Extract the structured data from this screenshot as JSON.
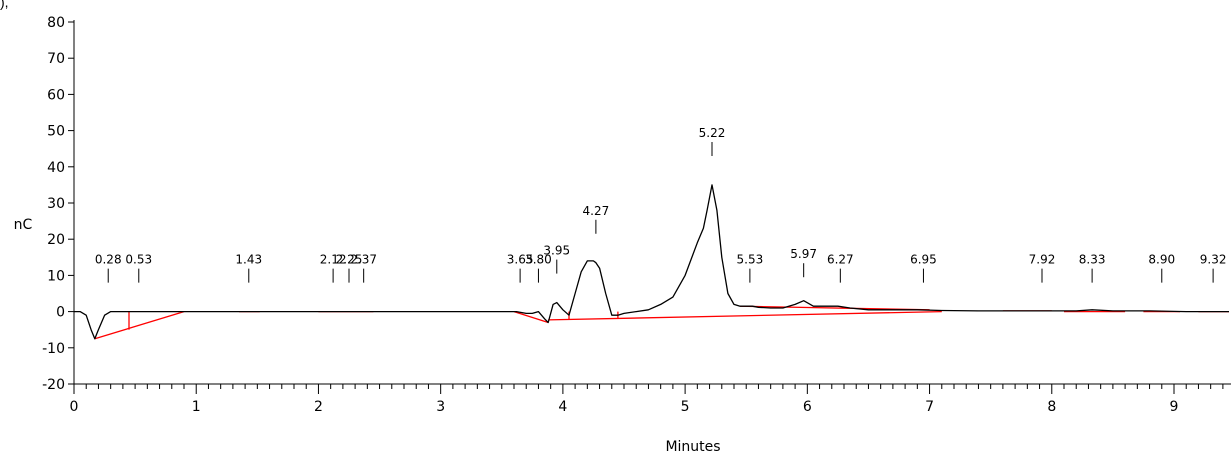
{
  "corner_label": "),",
  "chart_data": {
    "type": "line",
    "xlabel": "Minutes",
    "ylabel": "nC",
    "xlim": [
      0,
      9.45
    ],
    "ylim": [
      -20,
      80
    ],
    "x_ticks": [
      0,
      1,
      2,
      3,
      4,
      5,
      6,
      7,
      8,
      9
    ],
    "y_ticks": [
      -20,
      -10,
      0,
      10,
      20,
      30,
      40,
      50,
      60,
      70,
      80
    ],
    "grid": false,
    "colors": {
      "trace": "#000000",
      "baseline": "#ff0000",
      "axis": "#000000"
    },
    "peaks": [
      {
        "label": "0.28",
        "x": 0.28,
        "y": 8
      },
      {
        "label": "0.53",
        "x": 0.53,
        "y": 8
      },
      {
        "label": "1.43",
        "x": 1.43,
        "y": 8
      },
      {
        "label": "2.12",
        "x": 2.12,
        "y": 8
      },
      {
        "label": "2.25",
        "x": 2.25,
        "y": 8
      },
      {
        "label": "2.37",
        "x": 2.37,
        "y": 8
      },
      {
        "label": "3.65",
        "x": 3.65,
        "y": 8
      },
      {
        "label": "3.80",
        "x": 3.8,
        "y": 8
      },
      {
        "label": "3.95",
        "x": 3.95,
        "y": 10.5
      },
      {
        "label": "4.27",
        "x": 4.27,
        "y": 21.5
      },
      {
        "label": "5.22",
        "x": 5.22,
        "y": 43
      },
      {
        "label": "5.53",
        "x": 5.53,
        "y": 8
      },
      {
        "label": "5.97",
        "x": 5.97,
        "y": 9.5
      },
      {
        "label": "6.27",
        "x": 6.27,
        "y": 8
      },
      {
        "label": "6.95",
        "x": 6.95,
        "y": 8
      },
      {
        "label": "7.92",
        "x": 7.92,
        "y": 8
      },
      {
        "label": "8.33",
        "x": 8.33,
        "y": 8
      },
      {
        "label": "8.90",
        "x": 8.9,
        "y": 8
      },
      {
        "label": "9.32",
        "x": 9.32,
        "y": 8
      }
    ],
    "trace": {
      "x": [
        0,
        0.05,
        0.1,
        0.14,
        0.17,
        0.2,
        0.25,
        0.3,
        0.4,
        0.6,
        0.9,
        1.2,
        1.5,
        2.0,
        2.5,
        3.0,
        3.5,
        3.62,
        3.7,
        3.75,
        3.8,
        3.85,
        3.88,
        3.92,
        3.95,
        4.0,
        4.05,
        4.1,
        4.15,
        4.2,
        4.25,
        4.27,
        4.3,
        4.35,
        4.4,
        4.45,
        4.5,
        4.6,
        4.7,
        4.8,
        4.9,
        5.0,
        5.1,
        5.15,
        5.18,
        5.22,
        5.26,
        5.3,
        5.35,
        5.4,
        5.45,
        5.5,
        5.55,
        5.6,
        5.7,
        5.8,
        5.9,
        5.97,
        6.05,
        6.15,
        6.25,
        6.35,
        6.5,
        6.7,
        6.9,
        7.1,
        7.4,
        7.8,
        8.2,
        8.33,
        8.5,
        8.8,
        9.1,
        9.45
      ],
      "y": [
        0,
        0,
        -1,
        -5,
        -7.5,
        -5,
        -1,
        0,
        0,
        0,
        0,
        0,
        0,
        0,
        0,
        0,
        0,
        0,
        -0.5,
        -0.5,
        0,
        -2,
        -3,
        2,
        2.5,
        0.5,
        -1,
        5,
        11,
        14,
        14,
        13.5,
        12,
        5,
        -1,
        -1,
        -0.5,
        0,
        0.5,
        2,
        4,
        10,
        19,
        23,
        28,
        35,
        28,
        15,
        5,
        2,
        1.5,
        1.5,
        1.5,
        1.2,
        1,
        1,
        2,
        3,
        1.5,
        1.5,
        1.5,
        1,
        0.5,
        0.5,
        0.5,
        0.3,
        0.2,
        0.2,
        0.2,
        0.5,
        0.2,
        0.2,
        0,
        0
      ]
    },
    "baselines": [
      {
        "x": [
          0.17,
          0.9
        ],
        "y": [
          -7.5,
          0
        ]
      },
      {
        "x": [
          0.45,
          0.45
        ],
        "y": [
          -5,
          0
        ]
      },
      {
        "x": [
          1.35,
          1.52
        ],
        "y": [
          0,
          0
        ]
      },
      {
        "x": [
          2.0,
          2.45
        ],
        "y": [
          0,
          0
        ]
      },
      {
        "x": [
          3.6,
          3.88
        ],
        "y": [
          0,
          -3
        ]
      },
      {
        "x": [
          3.88,
          7.1
        ],
        "y": [
          -2.3,
          0
        ]
      },
      {
        "x": [
          4.05,
          4.05
        ],
        "y": [
          -2.2,
          0
        ]
      },
      {
        "x": [
          4.45,
          4.45
        ],
        "y": [
          -2,
          0
        ]
      },
      {
        "x": [
          5.45,
          7.0
        ],
        "y": [
          1.5,
          0.5
        ]
      },
      {
        "x": [
          7.6,
          8.0
        ],
        "y": [
          0.2,
          0.2
        ]
      },
      {
        "x": [
          8.1,
          8.6
        ],
        "y": [
          0,
          0
        ]
      },
      {
        "x": [
          8.75,
          9.05
        ],
        "y": [
          0,
          0
        ]
      },
      {
        "x": [
          9.2,
          9.45
        ],
        "y": [
          0,
          0
        ]
      }
    ]
  }
}
